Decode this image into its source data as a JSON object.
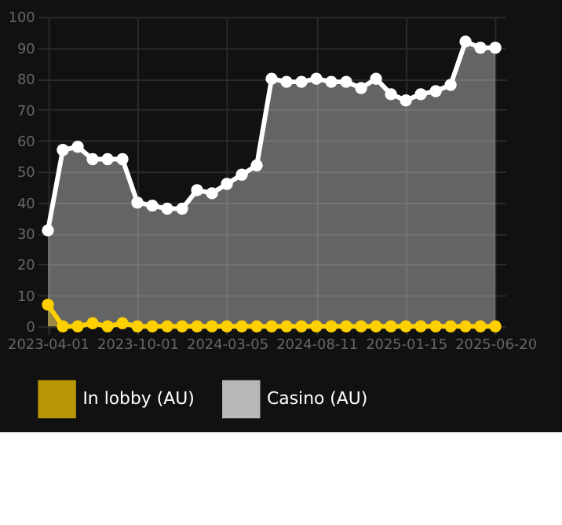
{
  "chart_data": {
    "type": "area",
    "categories": [
      "2023-04-01",
      null,
      null,
      null,
      null,
      null,
      "2023-10-01",
      null,
      null,
      null,
      null,
      null,
      "2024-03-05",
      null,
      null,
      null,
      null,
      null,
      "2024-08-11",
      null,
      null,
      null,
      null,
      null,
      "2025-01-15",
      null,
      null,
      null,
      null,
      null,
      "2025-06-20"
    ],
    "series": [
      {
        "name": "In lobby (AU)",
        "color": "#ffd000",
        "values": [
          7,
          0,
          0,
          1,
          0,
          1,
          0,
          0,
          0,
          0,
          0,
          0,
          0,
          0,
          0,
          0,
          0,
          0,
          0,
          0,
          0,
          0,
          0,
          0,
          0,
          0,
          0,
          0,
          0,
          0,
          0
        ]
      },
      {
        "name": "Casino (AU)",
        "color": "#ffffff",
        "values": [
          31,
          57,
          58,
          54,
          54,
          54,
          40,
          39,
          38,
          38,
          44,
          43,
          46,
          49,
          52,
          80,
          79,
          79,
          80,
          79,
          79,
          77,
          80,
          75,
          73,
          75,
          76,
          78,
          92,
          90,
          90
        ]
      }
    ],
    "ylim": [
      0,
      100
    ],
    "yticks": [
      0,
      10,
      20,
      30,
      40,
      50,
      60,
      70,
      80,
      90,
      100
    ],
    "grid": true,
    "legend": "bottom",
    "marker": "circle"
  }
}
